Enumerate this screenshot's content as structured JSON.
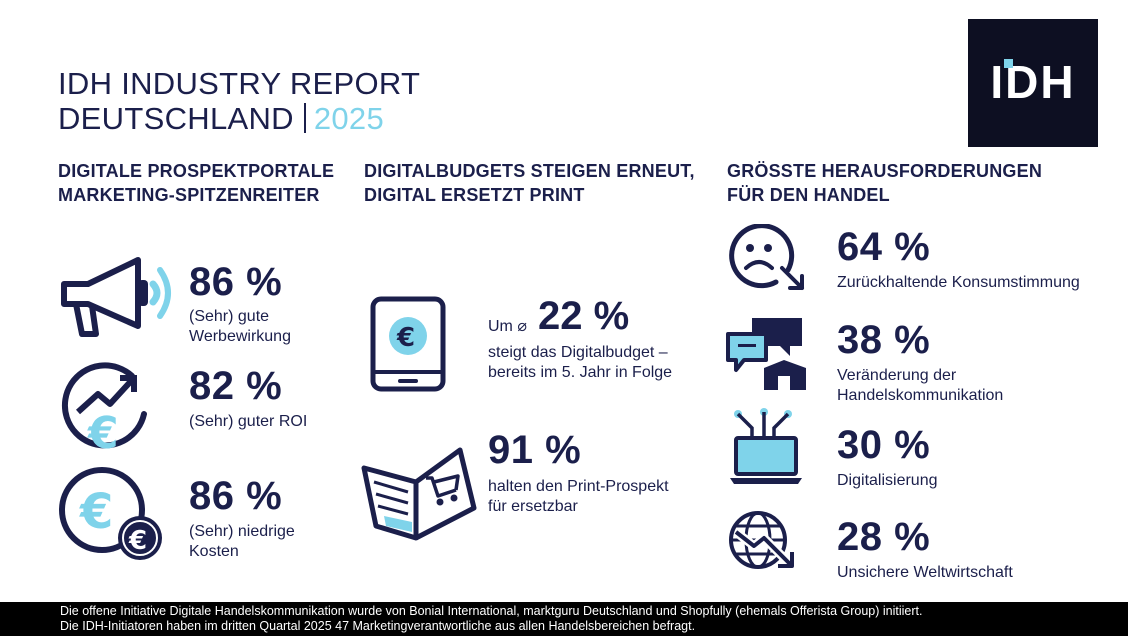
{
  "header": {
    "title_line1": "IDH INDUSTRY REPORT",
    "title_line2": "DEUTSCHLAND",
    "year": "2025",
    "logo_text": "IDH"
  },
  "columns": {
    "col1": {
      "heading_line1": "DIGITALE PROSPEKTPORTALE",
      "heading_line2": "MARKETING-SPITZENREITER",
      "stats": [
        {
          "value": "86 %",
          "label_line1": "(Sehr) gute",
          "label_line2": "Werbewirkung",
          "icon": "megaphone-icon"
        },
        {
          "value": "82 %",
          "label_line1": "(Sehr) guter ROI",
          "label_line2": "",
          "icon": "euro-growth-icon"
        },
        {
          "value": "86 %",
          "label_line1": "(Sehr) niedrige",
          "label_line2": "Kosten",
          "icon": "euro-coins-icon"
        }
      ]
    },
    "col2": {
      "heading_line1": "DIGITALBUDGETS STEIGEN ERNEUT,",
      "heading_line2": "DIGITAL ERSETZT PRINT",
      "stats": [
        {
          "prefix": "Um ⌀",
          "value": "22 %",
          "label_line1": "steigt das Digitalbudget –",
          "label_line2": "bereits im 5. Jahr in Folge",
          "icon": "tablet-euro-icon"
        },
        {
          "value": "91 %",
          "label_line1": "halten den Print-Prospekt",
          "label_line2": "für ersetzbar",
          "icon": "open-catalog-icon"
        }
      ]
    },
    "col3": {
      "heading_line1": "GRÖSSTE HERAUSFORDERUNGEN",
      "heading_line2": "FÜR DEN HANDEL",
      "stats": [
        {
          "value": "64 %",
          "label_line1": "Zurückhaltende Konsumstimmung",
          "label_line2": "",
          "icon": "sad-face-icon"
        },
        {
          "value": "38 %",
          "label_line1": "Veränderung der",
          "label_line2": "Handelskommunikation",
          "icon": "chat-store-icon"
        },
        {
          "value": "30 %",
          "label_line1": "Digitalisierung",
          "label_line2": "",
          "icon": "laptop-network-icon"
        },
        {
          "value": "28 %",
          "label_line1": "Unsichere Weltwirtschaft",
          "label_line2": "",
          "icon": "globe-decline-icon"
        }
      ]
    }
  },
  "footer": {
    "line1": "Die offene Initiative Digitale Handelskommunikation wurde von Bonial International, marktguru Deutschland und Shopfully (ehemals Offerista Group) initiiert.",
    "line2": "Die IDH-Initiatoren haben im dritten Quartal 2025 47 Marketingverantwortliche aus allen Handelsbereichen befragt."
  },
  "colors": {
    "navy": "#1b1f4b",
    "accent": "#7fd3ea",
    "logo_bg": "#0d0f22",
    "footer_bg": "#000000"
  }
}
